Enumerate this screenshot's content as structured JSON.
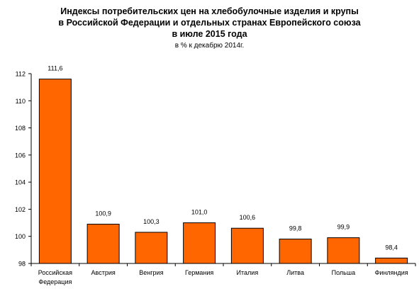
{
  "chart_data": {
    "type": "bar",
    "title_lines": [
      "Индексы потребительских цен на хлебобулочные изделия и крупы",
      "в Российской Федерации и отдельных странах Европейского союза",
      "в июле 2015 года"
    ],
    "subtitle": "в % к декабрю 2014г.",
    "categories": [
      [
        "Российская",
        "Федерация"
      ],
      [
        "Австрия"
      ],
      [
        "Венгрия"
      ],
      [
        "Германия"
      ],
      [
        "Италия"
      ],
      [
        "Литва"
      ],
      [
        "Польша"
      ],
      [
        "Финляндия"
      ]
    ],
    "values": [
      111.6,
      100.9,
      100.3,
      101.0,
      100.6,
      99.8,
      99.9,
      98.4
    ],
    "value_labels": [
      "111,6",
      "100,9",
      "100,3",
      "101,0",
      "100,6",
      "99,8",
      "99,9",
      "98,4"
    ],
    "ylim": [
      98,
      112
    ],
    "yticks": [
      98,
      100,
      102,
      104,
      106,
      108,
      110,
      112
    ],
    "bar_color": "#ff6600",
    "bar_edge_color": "#000000",
    "grid": false
  }
}
